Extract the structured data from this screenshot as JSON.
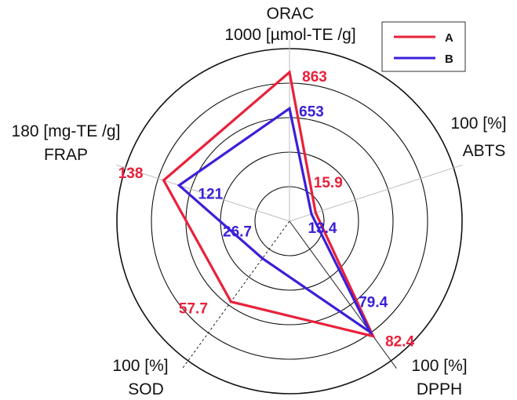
{
  "chart_data": {
    "type": "radar",
    "axes": [
      {
        "name": "ORAC",
        "max_label": "1000 [µmol-TE /g]",
        "max": 1000
      },
      {
        "name": "ABTS",
        "max_label": "100 [%]",
        "max": 100
      },
      {
        "name": "DPPH",
        "max_label": "100 [%]",
        "max": 100
      },
      {
        "name": "SOD",
        "max_label": "100 [%]",
        "max": 100
      },
      {
        "name": "FRAP",
        "max_label": "180 [mg-TE /g]",
        "max": 180
      }
    ],
    "series": [
      {
        "name": "A",
        "color": "#e8213b",
        "values": [
          863,
          15.9,
          82.4,
          57.7,
          138
        ],
        "labels": [
          "863",
          "15.9",
          "82.4",
          "57.7",
          "138"
        ]
      },
      {
        "name": "B",
        "color": "#3a20d9",
        "values": [
          653,
          13.4,
          79.4,
          26.7,
          121
        ],
        "labels": [
          "653",
          "13.4",
          "79.4",
          "26.7",
          "121"
        ]
      }
    ],
    "rings": 5,
    "legend_position": "top-right"
  }
}
